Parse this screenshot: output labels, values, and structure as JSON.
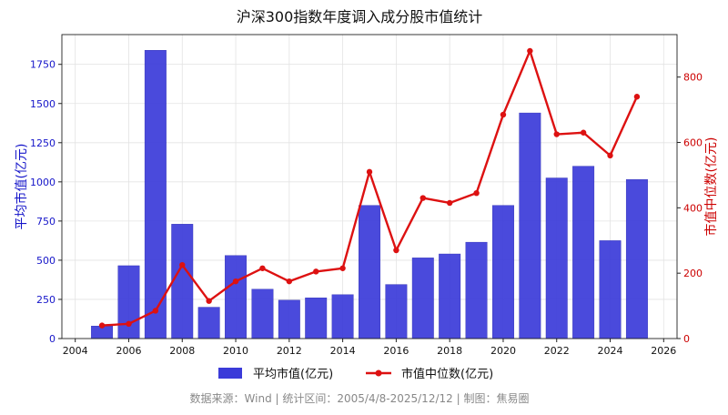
{
  "chart_data": {
    "type": "bar+line",
    "title": "沪深300指数年度调入成分股市值统计",
    "x": [
      2005,
      2006,
      2007,
      2008,
      2009,
      2010,
      2011,
      2012,
      2013,
      2014,
      2015,
      2016,
      2017,
      2018,
      2019,
      2020,
      2021,
      2022,
      2023,
      2024,
      2025
    ],
    "xlim": [
      2003.5,
      2026.5
    ],
    "xticks": [
      2004,
      2006,
      2008,
      2010,
      2012,
      2014,
      2016,
      2018,
      2020,
      2022,
      2024,
      2026
    ],
    "y_left": {
      "label": "平均市值(亿元)",
      "range": [
        0,
        1940
      ],
      "ticks": [
        0,
        250,
        500,
        750,
        1000,
        1250,
        1500,
        1750
      ],
      "color": "#1515c9"
    },
    "y_right": {
      "label": "市值中位数(亿元)",
      "range": [
        0,
        930
      ],
      "ticks": [
        0,
        200,
        400,
        600,
        800
      ],
      "color": "#cc0000"
    },
    "series": [
      {
        "name": "平均市值(亿元)",
        "kind": "bar",
        "axis": "left",
        "color": "#3b3bd9",
        "values": [
          80,
          465,
          1840,
          730,
          200,
          530,
          315,
          245,
          260,
          280,
          850,
          345,
          515,
          540,
          615,
          850,
          1440,
          1025,
          1100,
          625,
          1015
        ]
      },
      {
        "name": "市值中位数(亿元)",
        "kind": "line",
        "axis": "right",
        "color": "#dd1111",
        "values": [
          40,
          45,
          85,
          225,
          115,
          175,
          215,
          175,
          205,
          215,
          510,
          270,
          430,
          415,
          445,
          685,
          880,
          625,
          630,
          560,
          740
        ]
      }
    ],
    "grid": true,
    "legend": "bottom-center",
    "footer": "数据来源：Wind | 统计区间：2005/4/8-2025/12/12  | 制图：焦易圈"
  }
}
